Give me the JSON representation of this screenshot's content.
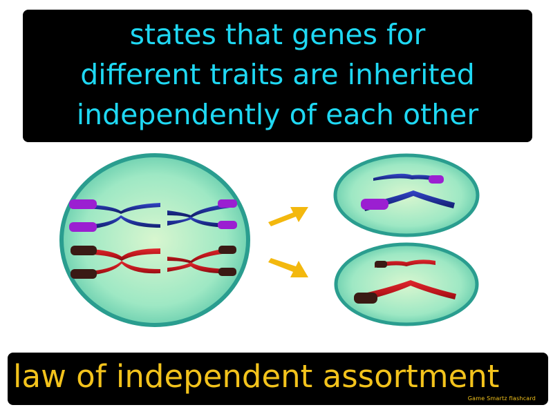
{
  "definition": {
    "lines": [
      "states that genes for",
      "different traits are inherited",
      "independently of each other"
    ]
  },
  "term": "law of independent assortment",
  "credit": "Game Smartz flashcard",
  "colors": {
    "definition_text": "#1fd8f3",
    "term_text": "#f3c31c",
    "cell_fill": "#9ee8c4",
    "cell_border": "#2a9d8f",
    "chromosome_blue": "#1b2a8a",
    "chromosome_purple": "#9b1fd1",
    "chromosome_red": "#b8141a",
    "chromosome_dark": "#3a1a14",
    "arrow": "#f3b80e"
  },
  "icons": [
    "parent-cell-icon",
    "daughter-cell-icon",
    "arrow-right-icon",
    "chromosome-icon"
  ]
}
